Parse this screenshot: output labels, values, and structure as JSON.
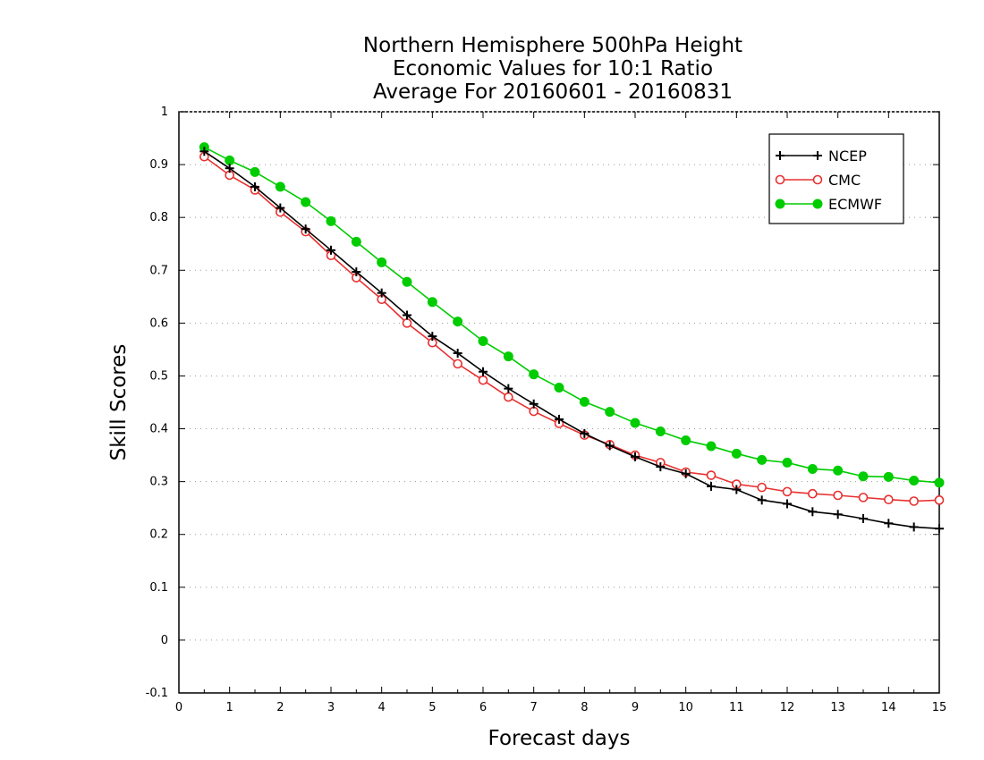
{
  "chart_data": {
    "type": "line",
    "title": [
      "Northern Hemisphere 500hPa Height",
      "Economic Values for 10:1 Ratio",
      "Average For 20160601 - 20160831"
    ],
    "xlabel": "Forecast days",
    "ylabel": "Skill Scores",
    "xlim": [
      0,
      15
    ],
    "ylim": [
      -0.1,
      1
    ],
    "xticks": [
      "0",
      "1",
      "2",
      "3",
      "4",
      "5",
      "6",
      "7",
      "8",
      "9",
      "10",
      "11",
      "12",
      "13",
      "14",
      "15"
    ],
    "yticks": [
      "-0.1",
      "0",
      "0.1",
      "0.2",
      "0.3",
      "0.4",
      "0.5",
      "0.6",
      "0.7",
      "0.8",
      "0.9",
      "1"
    ],
    "grid": "horizontal-dotted",
    "legend_position": "top-right",
    "x": [
      0.5,
      1,
      1.5,
      2,
      2.5,
      3,
      3.5,
      4,
      4.5,
      5,
      5.5,
      6,
      6.5,
      7,
      7.5,
      8,
      8.5,
      9,
      9.5,
      10,
      10.5,
      11,
      11.5,
      12,
      12.5,
      13,
      13.5,
      14,
      14.5,
      15
    ],
    "series": [
      {
        "name": "NCEP",
        "color": "#000000",
        "marker": "plus",
        "values": [
          0.925,
          0.893,
          0.858,
          0.818,
          0.778,
          0.738,
          0.697,
          0.657,
          0.615,
          0.575,
          0.543,
          0.508,
          0.476,
          0.447,
          0.418,
          0.391,
          0.368,
          0.347,
          0.328,
          0.315,
          0.291,
          0.285,
          0.265,
          0.258,
          0.243,
          0.238,
          0.23,
          0.221,
          0.214,
          0.211
        ]
      },
      {
        "name": "CMC",
        "color": "#e83030",
        "marker": "open-circle",
        "values": [
          0.915,
          0.88,
          0.852,
          0.81,
          0.773,
          0.728,
          0.686,
          0.645,
          0.6,
          0.563,
          0.523,
          0.492,
          0.46,
          0.433,
          0.41,
          0.388,
          0.37,
          0.35,
          0.336,
          0.318,
          0.312,
          0.295,
          0.289,
          0.281,
          0.277,
          0.274,
          0.27,
          0.266,
          0.263,
          0.265
        ]
      },
      {
        "name": "ECMWF",
        "color": "#00cc00",
        "marker": "filled-circle",
        "values": [
          0.933,
          0.908,
          0.886,
          0.858,
          0.829,
          0.793,
          0.754,
          0.715,
          0.678,
          0.64,
          0.603,
          0.566,
          0.537,
          0.503,
          0.478,
          0.451,
          0.432,
          0.411,
          0.395,
          0.378,
          0.367,
          0.353,
          0.341,
          0.336,
          0.324,
          0.321,
          0.31,
          0.309,
          0.302,
          0.298
        ]
      }
    ]
  }
}
